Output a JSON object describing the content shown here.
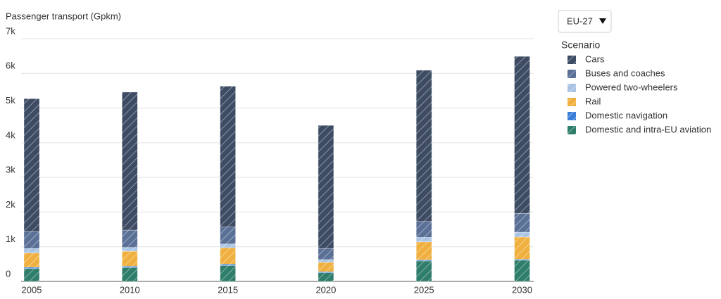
{
  "chart_data": {
    "type": "bar",
    "stacked": true,
    "title": "Passenger transport (Gpkm)",
    "region": "EU-27",
    "legend_title": "Scenario",
    "categories": [
      "2005",
      "2010",
      "2015",
      "2020",
      "2025",
      "2030"
    ],
    "series": [
      {
        "name": "Domestic and intra-EU aviation",
        "color": "#2f7d6b",
        "values": [
          370,
          400,
          460,
          250,
          590,
          610
        ]
      },
      {
        "name": "Domestic navigation",
        "color": "#3b7ed8",
        "values": [
          40,
          40,
          40,
          30,
          30,
          30
        ]
      },
      {
        "name": "Rail",
        "color": "#f0b040",
        "values": [
          410,
          430,
          470,
          270,
          520,
          640
        ]
      },
      {
        "name": "Powered two-wheelers",
        "color": "#a9c4e4",
        "values": [
          130,
          110,
          110,
          80,
          130,
          140
        ]
      },
      {
        "name": "Buses and coaches",
        "color": "#5a7096",
        "values": [
          490,
          500,
          490,
          320,
          460,
          540
        ]
      },
      {
        "name": "Cars",
        "color": "#3d4b63",
        "values": [
          3830,
          3980,
          4060,
          3550,
          4360,
          4530
        ]
      }
    ],
    "ylim": [
      0,
      7000
    ],
    "yticks": [
      0,
      {
        "value": 1000,
        "label": "1k"
      },
      {
        "value": 2000,
        "label": "2k"
      },
      {
        "value": 3000,
        "label": "3k"
      },
      {
        "value": 4000,
        "label": "4k"
      },
      {
        "value": 5000,
        "label": "5k"
      },
      {
        "value": 6000,
        "label": "6k"
      },
      {
        "value": 7000,
        "label": "7k"
      }
    ],
    "grid": true
  }
}
